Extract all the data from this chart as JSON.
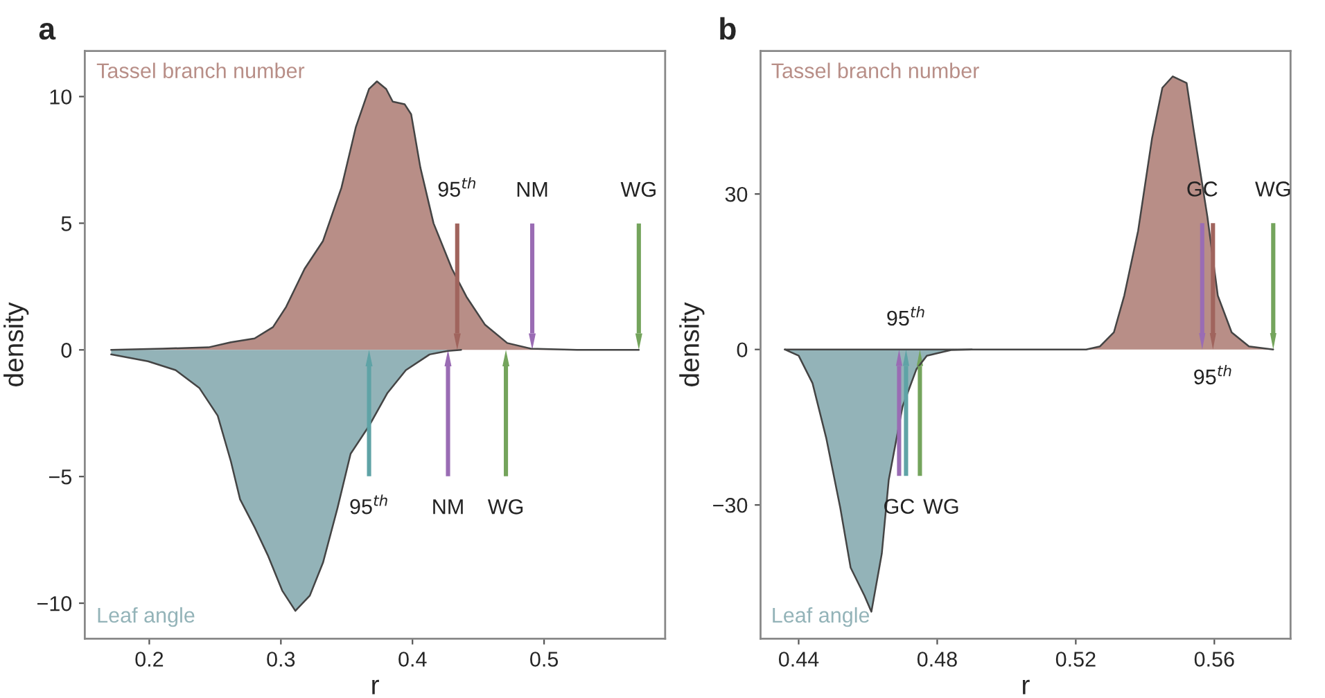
{
  "chart_data": [
    {
      "type": "area",
      "title": "a",
      "xlabel": "r",
      "ylabel": "density",
      "xlim": [
        0.151,
        0.592
      ],
      "ylim": [
        -11.4,
        11.8
      ],
      "xticks": [
        0.2,
        0.3,
        0.4,
        0.5
      ],
      "yticks": [
        -10,
        -5,
        0,
        5,
        10
      ],
      "grid": false,
      "legend": false,
      "series": [
        {
          "name": "Tassel branch number",
          "color": "#b88e87",
          "x": [
            0.171,
            0.21,
            0.245,
            0.262,
            0.28,
            0.294,
            0.304,
            0.318,
            0.332,
            0.346,
            0.357,
            0.367,
            0.373,
            0.38,
            0.385,
            0.394,
            0.399,
            0.406,
            0.416,
            0.43,
            0.441,
            0.455,
            0.472,
            0.49,
            0.525,
            0.572
          ],
          "values": [
            0,
            0.05,
            0.1,
            0.3,
            0.45,
            0.9,
            1.7,
            3.2,
            4.3,
            6.4,
            8.8,
            10.3,
            10.6,
            10.3,
            9.8,
            9.7,
            9.3,
            7.2,
            5.0,
            3.2,
            2.1,
            1.0,
            0.27,
            0.05,
            0,
            0
          ]
        },
        {
          "name": "Leaf angle",
          "color": "#93b3b8",
          "x": [
            0.171,
            0.199,
            0.22,
            0.238,
            0.252,
            0.262,
            0.269,
            0.28,
            0.29,
            0.301,
            0.311,
            0.322,
            0.332,
            0.343,
            0.353,
            0.367,
            0.381,
            0.395,
            0.413,
            0.427,
            0.437
          ],
          "values": [
            -0.18,
            -0.45,
            -0.8,
            -1.5,
            -2.6,
            -4.4,
            -5.9,
            -7.0,
            -8.1,
            -9.5,
            -10.3,
            -9.7,
            -8.4,
            -6.25,
            -4.1,
            -3.0,
            -1.7,
            -0.8,
            -0.18,
            -0.04,
            0
          ]
        }
      ],
      "ref_lines": [
        {
          "axis": "x",
          "value": 0.434,
          "label": "95$^{th}$",
          "color": "#a0645d"
        },
        {
          "axis": "x",
          "value": 0.491,
          "label": "NM",
          "color": "#9a6cb4"
        },
        {
          "axis": "x",
          "value": 0.572,
          "label": "WG",
          "color": "#74a45c"
        },
        {
          "axis": "x",
          "value": 0.367,
          "label": "95$^{th}$",
          "color": "#5fa3a6"
        },
        {
          "axis": "x",
          "value": 0.427,
          "label": "NM",
          "color": "#9a6cb4"
        },
        {
          "axis": "x",
          "value": 0.471,
          "label": "WG",
          "color": "#74a45c"
        }
      ]
    },
    {
      "type": "area",
      "title": "b",
      "xlabel": "r",
      "ylabel": "density",
      "xlim": [
        0.429,
        0.582
      ],
      "ylim": [
        -55.8,
        57.6
      ],
      "xticks": [
        0.44,
        0.48,
        0.52,
        0.56
      ],
      "yticks": [
        -30,
        0,
        30
      ],
      "grid": false,
      "legend": false,
      "series": [
        {
          "name": "Tassel branch number",
          "color": "#b88e87",
          "x": [
            0.436,
            0.49,
            0.523,
            0.527,
            0.531,
            0.534,
            0.538,
            0.542,
            0.545,
            0.548,
            0.552,
            0.554,
            0.558,
            0.561,
            0.565,
            0.57,
            0.577
          ],
          "values": [
            0,
            0,
            0,
            0.6,
            3.3,
            10.4,
            22.9,
            40.7,
            50.5,
            52.7,
            51.4,
            42.5,
            25.6,
            10.4,
            3.3,
            0.6,
            0
          ]
        },
        {
          "name": "Leaf angle",
          "color": "#93b3b8",
          "x": [
            0.436,
            0.44,
            0.444,
            0.448,
            0.452,
            0.455,
            0.459,
            0.461,
            0.464,
            0.466,
            0.47,
            0.474,
            0.477,
            0.484,
            0.49
          ],
          "values": [
            0,
            -1.2,
            -6.5,
            -17.2,
            -30.5,
            -42.1,
            -47.5,
            -50.6,
            -39.4,
            -25.2,
            -11.0,
            -3.8,
            -1.2,
            -0.1,
            0
          ]
        }
      ],
      "ref_lines": [
        {
          "axis": "x",
          "value": 0.5565,
          "label": "GC",
          "color": "#9a6cb4"
        },
        {
          "axis": "x",
          "value": 0.5596,
          "label": "95$^{th}$",
          "color": "#a0645d"
        },
        {
          "axis": "x",
          "value": 0.577,
          "label": "WG",
          "color": "#74a45c"
        },
        {
          "axis": "x",
          "value": 0.469,
          "label": "GC",
          "color": "#9a6cb4"
        },
        {
          "axis": "x",
          "value": 0.471,
          "label": "95$^{th}$",
          "color": "#5fa3a6"
        },
        {
          "axis": "x",
          "value": 0.475,
          "label": "WG",
          "color": "#74a45c"
        }
      ]
    }
  ]
}
